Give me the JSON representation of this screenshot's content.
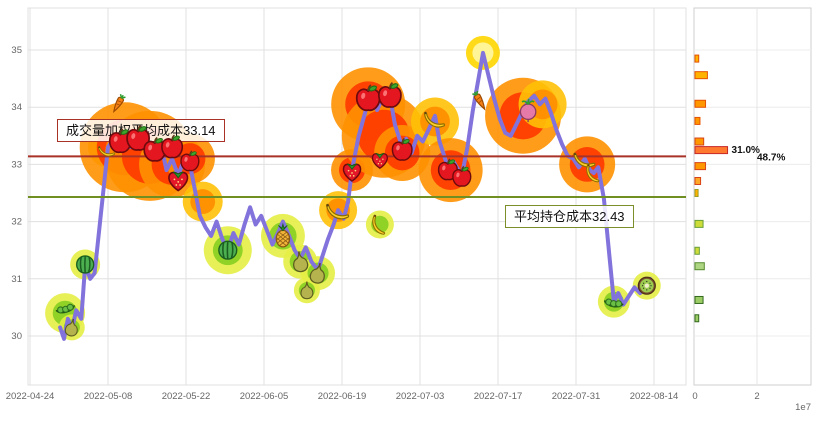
{
  "palette": {
    "line": "#8273dc",
    "grid": "#e0e0e0",
    "panel_grid": "#ececec",
    "axis_text": "#666666",
    "glow": {
      "hot": [
        "#ff9100",
        "#ff3d00"
      ],
      "warm": [
        "#ffc107",
        "#ff8f00"
      ],
      "cool": [
        "#e6ee45",
        "#8bd024"
      ],
      "peak": [
        "#ffd600",
        "#fff59d"
      ]
    }
  },
  "chart_data": [
    {
      "type": "line",
      "name": "holding-cost-price-chart",
      "y_ticks": [
        30,
        31,
        32,
        33,
        34,
        35
      ],
      "ylim": [
        29.15,
        35.73
      ],
      "xlim_days": [
        0,
        117.7
      ],
      "x_ticks": [
        {
          "label": "2022-04-24",
          "day": 0
        },
        {
          "label": "2022-05-08",
          "day": 14
        },
        {
          "label": "2022-05-22",
          "day": 28
        },
        {
          "label": "2022-06-05",
          "day": 42
        },
        {
          "label": "2022-06-19",
          "day": 56
        },
        {
          "label": "2022-07-03",
          "day": 70
        },
        {
          "label": "2022-07-17",
          "day": 84
        },
        {
          "label": "2022-07-31",
          "day": 98
        },
        {
          "label": "2022-08-14",
          "day": 112
        }
      ],
      "ref_lines": [
        {
          "label": "成交量加权平均成本33.14",
          "value": 33.14,
          "color": "#a93226"
        },
        {
          "label": "平均持仓成本32.43",
          "value": 32.43,
          "color": "#6f8f23"
        }
      ],
      "series": [
        {
          "name": "price",
          "color": "#8273dc",
          "points": [
            [
              5.4,
              30.15
            ],
            [
              6.1,
              29.95
            ],
            [
              6.8,
              30.3
            ],
            [
              7.5,
              30.1
            ],
            [
              8.3,
              30.45
            ],
            [
              9.2,
              30.3
            ],
            [
              9.9,
              31.25
            ],
            [
              10.8,
              31.0
            ],
            [
              11.6,
              31.1
            ],
            [
              14,
              33.3
            ],
            [
              15,
              33.45
            ],
            [
              16.2,
              33.35
            ],
            [
              17,
              33.55
            ],
            [
              18,
              33.3
            ],
            [
              19.4,
              33.5
            ],
            [
              20.5,
              33.3
            ],
            [
              21.5,
              33.4
            ],
            [
              22.4,
              33.2
            ],
            [
              23.5,
              33.35
            ],
            [
              24.5,
              32.9
            ],
            [
              25.5,
              33.1
            ],
            [
              26.6,
              32.8
            ],
            [
              27.5,
              33.05
            ],
            [
              28.7,
              33.0
            ],
            [
              29.5,
              32.6
            ],
            [
              30.5,
              32.1
            ],
            [
              31.5,
              31.9
            ],
            [
              32.5,
              31.75
            ],
            [
              33.5,
              32.0
            ],
            [
              34.5,
              31.7
            ],
            [
              35.5,
              31.5
            ],
            [
              36.5,
              31.8
            ],
            [
              37.5,
              31.6
            ],
            [
              38.5,
              31.95
            ],
            [
              39.5,
              32.25
            ],
            [
              40.5,
              31.95
            ],
            [
              41.5,
              32.1
            ],
            [
              42.5,
              31.85
            ],
            [
              43.5,
              31.6
            ],
            [
              44.5,
              31.8
            ],
            [
              45.4,
              32.0
            ],
            [
              46.5,
              31.75
            ],
            [
              47.5,
              31.5
            ],
            [
              48.5,
              31.35
            ],
            [
              49.5,
              31.55
            ],
            [
              50.5,
              31.3
            ],
            [
              51.7,
              31.15
            ],
            [
              52.5,
              31.4
            ],
            [
              53.5,
              31.7
            ],
            [
              54.5,
              31.95
            ],
            [
              55.3,
              32.2
            ],
            [
              56.3,
              32.05
            ],
            [
              57.1,
              32.35
            ],
            [
              57.8,
              32.9
            ],
            [
              59,
              33.5
            ],
            [
              60.7,
              34.1
            ],
            [
              61.5,
              34.2
            ],
            [
              62.3,
              33.95
            ],
            [
              63.2,
              34.15
            ],
            [
              64.6,
              34.2
            ],
            [
              65.5,
              33.7
            ],
            [
              66.8,
              33.3
            ],
            [
              67.5,
              33.45
            ],
            [
              68.5,
              33.2
            ],
            [
              69.5,
              33.5
            ],
            [
              70.5,
              33.4
            ],
            [
              71.5,
              33.6
            ],
            [
              72.7,
              33.85
            ],
            [
              73.5,
              33.4
            ],
            [
              75,
              32.95
            ],
            [
              76,
              33.05
            ],
            [
              77.5,
              32.8
            ],
            [
              78.5,
              33.3
            ],
            [
              79.5,
              33.95
            ],
            [
              80.5,
              34.5
            ],
            [
              81.3,
              34.95
            ],
            [
              82.3,
              34.55
            ],
            [
              83.3,
              34.15
            ],
            [
              84.3,
              33.8
            ],
            [
              85.3,
              33.55
            ],
            [
              86.3,
              33.5
            ],
            [
              87.3,
              33.7
            ],
            [
              88.3,
              33.9
            ],
            [
              89.4,
              34.1
            ],
            [
              90.5,
              34.2
            ],
            [
              91.5,
              34.05
            ],
            [
              92.5,
              34.15
            ],
            [
              93.5,
              33.9
            ],
            [
              94.5,
              33.6
            ],
            [
              95.5,
              33.35
            ],
            [
              96.5,
              33.15
            ],
            [
              97.5,
              33.1
            ],
            [
              98.5,
              32.95
            ],
            [
              99.6,
              33.1
            ],
            [
              100.5,
              32.9
            ],
            [
              101.2,
              32.85
            ],
            [
              102,
              32.95
            ],
            [
              103,
              32.4
            ],
            [
              104,
              31.4
            ],
            [
              104.8,
              30.6
            ],
            [
              105.6,
              30.75
            ],
            [
              106.5,
              30.55
            ],
            [
              107.5,
              30.7
            ],
            [
              108.5,
              30.85
            ],
            [
              109.5,
              30.75
            ],
            [
              110.7,
              30.9
            ],
            [
              111.3,
              31.0
            ]
          ]
        }
      ],
      "decorations": [
        [
          6.3,
          30.5,
          "peas",
          1.0,
          -15
        ],
        [
          7.5,
          30.15,
          "pear",
          0.85,
          10
        ],
        [
          9.9,
          31.25,
          "watermelon",
          1.0,
          0
        ],
        [
          13.8,
          33.25,
          "banana",
          0.75,
          -20
        ],
        [
          15.8,
          34.05,
          "carrot",
          0.95,
          30
        ],
        [
          16.2,
          33.4,
          "apple",
          1.25,
          0
        ],
        [
          19.4,
          33.45,
          "apple",
          1.3,
          0
        ],
        [
          22.4,
          33.25,
          "apple",
          1.25,
          0
        ],
        [
          25.5,
          33.3,
          "apple",
          1.2,
          0
        ],
        [
          28.7,
          33.05,
          "apple",
          1.05,
          0
        ],
        [
          26.6,
          32.75,
          "strawberry",
          1.25,
          0
        ],
        [
          35.5,
          31.5,
          "watermelon",
          1.05,
          0
        ],
        [
          45.4,
          31.75,
          "pineapple",
          1.1,
          0
        ],
        [
          48.5,
          31.3,
          "pear",
          1.0,
          -8
        ],
        [
          51.7,
          31.1,
          "pear",
          1.0,
          12
        ],
        [
          49.7,
          30.8,
          "pear",
          0.85,
          0
        ],
        [
          55.3,
          32.2,
          "banana",
          1.05,
          -15
        ],
        [
          57.8,
          32.9,
          "strawberry",
          1.15,
          0
        ],
        [
          60.7,
          34.15,
          "apple",
          1.35,
          0
        ],
        [
          64.6,
          34.2,
          "apple",
          1.3,
          0
        ],
        [
          62.8,
          33.1,
          "strawberry",
          1.0,
          0
        ],
        [
          66.8,
          33.25,
          "apple",
          1.15,
          0
        ],
        [
          62.8,
          31.95,
          "banana",
          0.9,
          20
        ],
        [
          72.7,
          33.8,
          "banana",
          1.0,
          -10
        ],
        [
          75,
          32.9,
          "apple",
          1.1,
          0
        ],
        [
          77.5,
          32.78,
          "apple",
          1.05,
          0
        ],
        [
          80.8,
          34.1,
          "carrot",
          1.0,
          -30
        ],
        [
          89.4,
          33.95,
          "radish",
          1.1,
          0
        ],
        [
          99.6,
          33.1,
          "banana",
          1.0,
          -15
        ],
        [
          101.2,
          32.85,
          "banana",
          0.85,
          15
        ],
        [
          104.8,
          30.6,
          "peas",
          1.0,
          10
        ],
        [
          110.7,
          30.88,
          "kiwi",
          1.0,
          0
        ]
      ],
      "hotspots": [
        [
          6.3,
          30.4,
          20,
          "cool"
        ],
        [
          7.5,
          30.15,
          13,
          "cool"
        ],
        [
          9.9,
          31.25,
          15,
          "cool"
        ],
        [
          14,
          33.3,
          20,
          "warm"
        ],
        [
          17,
          33.3,
          45,
          "hot"
        ],
        [
          21.5,
          33.15,
          45,
          "hot"
        ],
        [
          25.5,
          33.0,
          33,
          "hot"
        ],
        [
          28.7,
          33.1,
          25,
          "hot"
        ],
        [
          31,
          32.35,
          20,
          "warm"
        ],
        [
          35.5,
          31.5,
          24,
          "cool"
        ],
        [
          45.4,
          31.75,
          22,
          "cool"
        ],
        [
          48.5,
          31.3,
          17,
          "cool"
        ],
        [
          51.7,
          31.1,
          17,
          "cool"
        ],
        [
          49.7,
          30.8,
          13,
          "cool"
        ],
        [
          55.3,
          32.2,
          19,
          "warm"
        ],
        [
          62.8,
          31.95,
          14,
          "cool"
        ],
        [
          57.8,
          32.9,
          21,
          "hot"
        ],
        [
          60.7,
          34.05,
          37,
          "hot"
        ],
        [
          63.5,
          33.5,
          42,
          "hot"
        ],
        [
          66.8,
          33.2,
          28,
          "hot"
        ],
        [
          72.7,
          33.75,
          24,
          "warm"
        ],
        [
          75.5,
          32.9,
          32,
          "hot"
        ],
        [
          81.3,
          34.95,
          17,
          "peak"
        ],
        [
          88.5,
          33.85,
          38,
          "hot"
        ],
        [
          92,
          34.05,
          24,
          "warm"
        ],
        [
          100,
          33.0,
          28,
          "hot"
        ],
        [
          104.8,
          30.6,
          16,
          "cool"
        ],
        [
          110.7,
          30.88,
          14,
          "cool"
        ]
      ]
    },
    {
      "type": "bar",
      "name": "volume-by-price",
      "orientation": "horizontal",
      "x_ticks": [
        {
          "label": "0",
          "value": 0
        },
        {
          "label": "2",
          "value": 2
        }
      ],
      "scale_label": "1e7",
      "xlim": [
        0,
        3.7
      ],
      "bars": [
        {
          "price": 34.85,
          "value": 0.12,
          "fill": "#ffb300",
          "stroke": "#e65100"
        },
        {
          "price": 34.56,
          "value": 0.4,
          "fill": "#ffb300",
          "stroke": "#e65100"
        },
        {
          "price": 34.06,
          "value": 0.34,
          "fill": "#ff9800",
          "stroke": "#e65100"
        },
        {
          "price": 33.76,
          "value": 0.16,
          "fill": "#ff9800",
          "stroke": "#e65100"
        },
        {
          "price": 33.4,
          "value": 0.28,
          "fill": "#ff9800",
          "stroke": "#d84315"
        },
        {
          "price": 33.25,
          "value": 1.05,
          "fill": "#ff7a2f",
          "stroke": "#c62828",
          "label": "31.0%"
        },
        {
          "price": 32.97,
          "value": 0.34,
          "fill": "#ff9800",
          "stroke": "#d84315"
        },
        {
          "price": 32.71,
          "value": 0.18,
          "fill": "#ffa726",
          "stroke": "#d84315"
        },
        {
          "price": 32.5,
          "value": 0.1,
          "fill": "#ffb300",
          "stroke": "#9e9d24"
        },
        {
          "price": 31.96,
          "value": 0.26,
          "fill": "#cddc39",
          "stroke": "#689f38"
        },
        {
          "price": 31.49,
          "value": 0.14,
          "fill": "#cddc39",
          "stroke": "#689f38"
        },
        {
          "price": 31.22,
          "value": 0.3,
          "fill": "#aed581",
          "stroke": "#558b2f"
        },
        {
          "price": 30.63,
          "value": 0.26,
          "fill": "#9ccc65",
          "stroke": "#33691e"
        },
        {
          "price": 30.31,
          "value": 0.12,
          "fill": "#9ccc65",
          "stroke": "#33691e"
        }
      ],
      "annotations": [
        {
          "text": "48.7%",
          "price": 33.12,
          "value": 2.0
        }
      ]
    }
  ]
}
